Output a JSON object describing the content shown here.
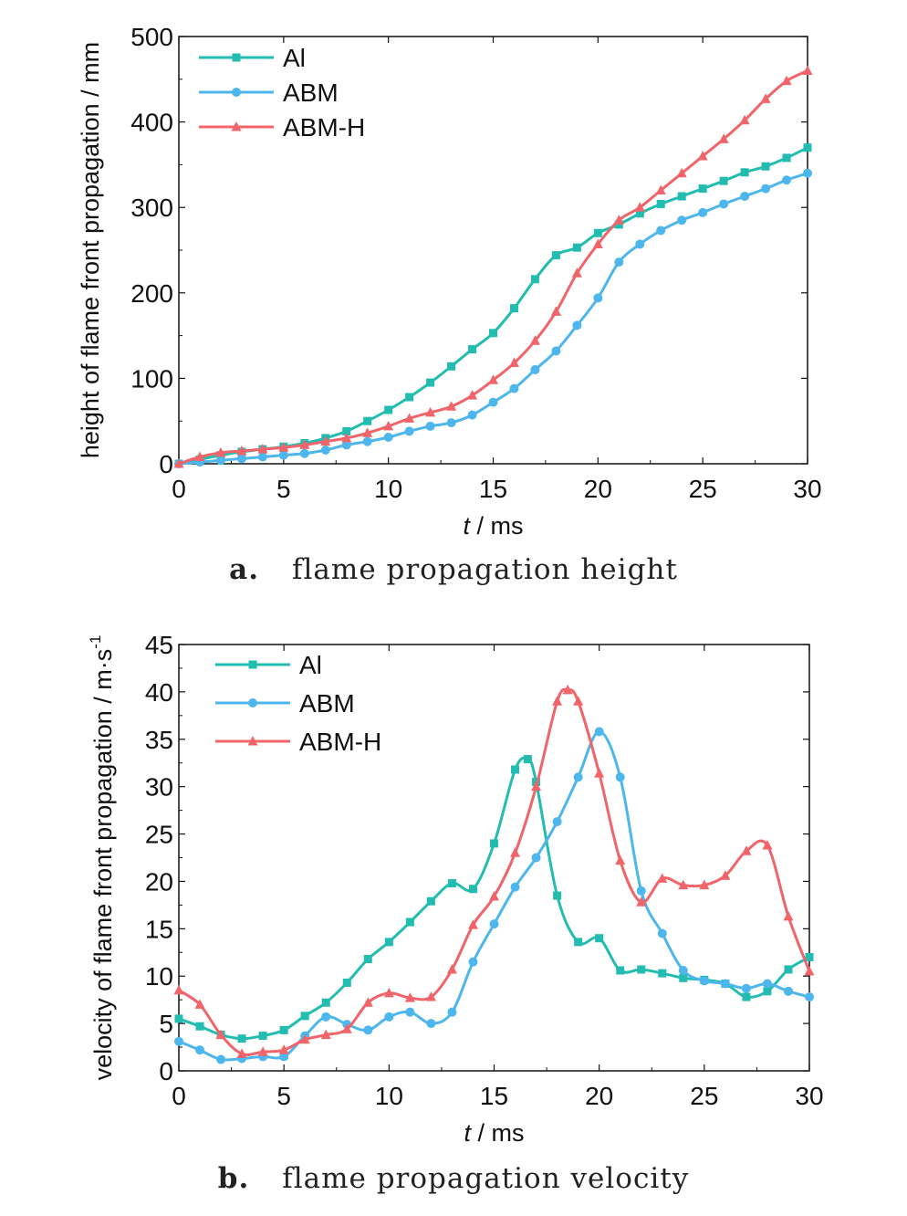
{
  "colors": {
    "Al": "#22bdb0",
    "ABM": "#4db6ec",
    "ABM-H": "#f0646a"
  },
  "captions": [
    {
      "letter": "a.",
      "text": "flame propagation height"
    },
    {
      "letter": "b.",
      "text": "flame propagation velocity"
    }
  ],
  "chart_data": [
    {
      "type": "line",
      "xlabel_italic": "t",
      "xlabel_unit": " / ms",
      "ylabel": "height of flame front propagation / mm",
      "xlim": [
        0,
        30
      ],
      "ylim": [
        0,
        500
      ],
      "xticks": [
        0,
        5,
        10,
        15,
        20,
        25,
        30
      ],
      "yticks": [
        0,
        100,
        200,
        300,
        400,
        500
      ],
      "legend": "top-left",
      "series": [
        {
          "name": "Al",
          "marker": "square",
          "x": [
            0,
            1,
            2,
            3,
            4,
            5,
            6,
            7,
            8,
            9,
            10,
            11,
            12,
            13,
            14,
            15,
            16,
            17,
            18,
            19,
            20,
            21,
            22,
            23,
            24,
            25,
            26,
            27,
            28,
            29,
            30
          ],
          "y": [
            0,
            5,
            10,
            14,
            17,
            20,
            24,
            30,
            38,
            50,
            63,
            78,
            95,
            114,
            134,
            153,
            182,
            216,
            244,
            253,
            270,
            280,
            293,
            304,
            313,
            322,
            331,
            341,
            348,
            358,
            370
          ]
        },
        {
          "name": "ABM",
          "marker": "circle",
          "x": [
            0,
            1,
            2,
            3,
            4,
            5,
            6,
            7,
            8,
            9,
            10,
            11,
            12,
            13,
            14,
            15,
            16,
            17,
            18,
            19,
            20,
            21,
            22,
            23,
            24,
            25,
            26,
            27,
            28,
            29,
            30
          ],
          "y": [
            0,
            2,
            4,
            6,
            8,
            10,
            12,
            16,
            22,
            26,
            31,
            38,
            44,
            48,
            57,
            72,
            88,
            110,
            132,
            162,
            194,
            236,
            257,
            273,
            285,
            294,
            304,
            313,
            322,
            332,
            340
          ]
        },
        {
          "name": "ABM-H",
          "marker": "triangle",
          "x": [
            0,
            1,
            2,
            3,
            4,
            5,
            6,
            7,
            8,
            9,
            10,
            11,
            12,
            13,
            14,
            15,
            16,
            17,
            18,
            19,
            20,
            21,
            22,
            23,
            24,
            25,
            26,
            27,
            28,
            29,
            30
          ],
          "y": [
            0,
            8,
            13,
            15,
            17,
            19,
            22,
            26,
            30,
            36,
            44,
            53,
            60,
            67,
            80,
            98,
            118,
            144,
            178,
            223,
            257,
            285,
            300,
            320,
            340,
            360,
            380,
            402,
            427,
            448,
            460
          ]
        }
      ]
    },
    {
      "type": "line",
      "xlabel_italic": "t",
      "xlabel_unit": " / ms",
      "ylabel": "velocity of flame front propagation / m·s",
      "ylabel_sup": "-1",
      "xlim": [
        0,
        30
      ],
      "ylim": [
        0,
        45
      ],
      "xticks": [
        0,
        5,
        10,
        15,
        20,
        25,
        30
      ],
      "yticks": [
        0,
        5,
        10,
        15,
        20,
        25,
        30,
        35,
        40,
        45
      ],
      "legend": "top-left",
      "series": [
        {
          "name": "Al",
          "marker": "square",
          "x": [
            0,
            1,
            2,
            3,
            4,
            5,
            6,
            7,
            8,
            9,
            10,
            11,
            12,
            13,
            14,
            15,
            16,
            16.6,
            17,
            18,
            19,
            20,
            21,
            22,
            23,
            24,
            25,
            26,
            27,
            28,
            29,
            30
          ],
          "y": [
            5.5,
            4.7,
            3.8,
            3.4,
            3.7,
            4.3,
            5.8,
            7.2,
            9.3,
            11.8,
            13.6,
            15.7,
            17.9,
            19.8,
            19.2,
            24.0,
            31.8,
            32.9,
            30.5,
            18.5,
            13.6,
            14.0,
            10.6,
            10.7,
            10.3,
            9.8,
            9.6,
            9.2,
            7.8,
            8.4,
            10.7,
            12.0
          ]
        },
        {
          "name": "ABM",
          "marker": "circle",
          "x": [
            0,
            1,
            2,
            3,
            4,
            5,
            6,
            7,
            8,
            9,
            10,
            11,
            12,
            13,
            14,
            15,
            16,
            17,
            18,
            19,
            20,
            21,
            22,
            23,
            24,
            25,
            26,
            27,
            28,
            29,
            30
          ],
          "y": [
            3.1,
            2.2,
            1.2,
            1.3,
            1.5,
            1.5,
            3.7,
            5.7,
            4.9,
            4.3,
            5.7,
            6.2,
            5.0,
            6.2,
            11.5,
            15.5,
            19.4,
            22.5,
            26.3,
            31.0,
            35.8,
            31.0,
            19.0,
            14.5,
            10.6,
            9.5,
            9.2,
            8.7,
            9.2,
            8.4,
            7.8
          ]
        },
        {
          "name": "ABM-H",
          "marker": "triangle",
          "x": [
            0,
            1,
            2,
            3,
            4,
            5,
            6,
            7,
            8,
            9,
            10,
            11,
            12,
            13,
            14,
            15,
            16,
            17,
            18,
            18.5,
            19,
            20,
            21,
            22,
            23,
            24,
            25,
            26,
            27,
            28,
            29,
            30
          ],
          "y": [
            8.5,
            7.0,
            3.8,
            1.8,
            2.0,
            2.2,
            3.3,
            3.8,
            4.4,
            7.2,
            8.2,
            7.7,
            7.8,
            10.7,
            15.4,
            18.4,
            23.0,
            30.0,
            39.0,
            40.2,
            39.0,
            31.4,
            22.2,
            17.8,
            20.3,
            19.6,
            19.6,
            20.6,
            23.2,
            23.8,
            16.3,
            10.5
          ]
        }
      ]
    }
  ]
}
